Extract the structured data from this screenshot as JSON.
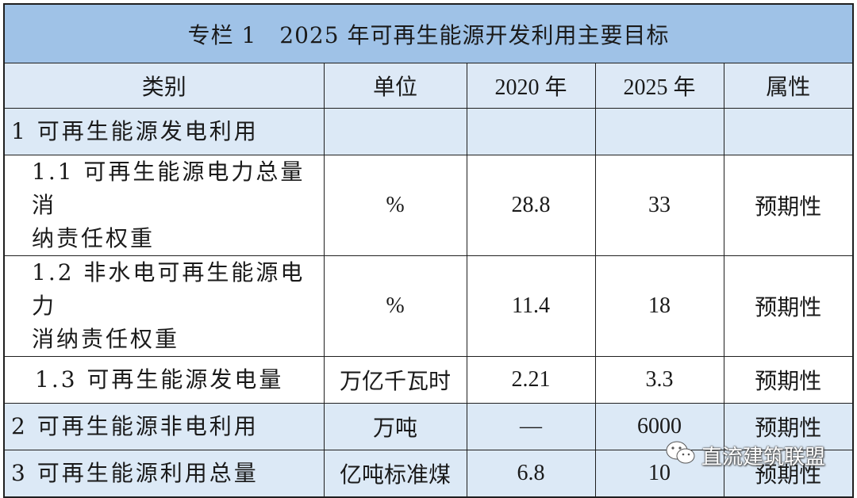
{
  "table": {
    "title": "专栏 1　2025 年可再生能源开发利用主要目标",
    "headers": [
      "类别",
      "单位",
      "2020 年",
      "2025 年",
      "属性"
    ],
    "rows": [
      {
        "category": "1 可再生能源发电利用",
        "unit": "",
        "y2020": "",
        "y2025": "",
        "attr": ""
      },
      {
        "category_line1": "1.1 可再生能源电力总量消",
        "category_line2": "纳责任权重",
        "unit": "%",
        "y2020": "28.8",
        "y2025": "33",
        "attr": "预期性"
      },
      {
        "category_line1": "1.2 非水电可再生能源电力",
        "category_line2": "消纳责任权重",
        "unit": "%",
        "y2020": "11.4",
        "y2025": "18",
        "attr": "预期性"
      },
      {
        "category": "1.3 可再生能源发电量",
        "unit": "万亿千瓦时",
        "y2020": "2.21",
        "y2025": "3.3",
        "attr": "预期性"
      },
      {
        "category": "2 可再生能源非电利用",
        "unit": "万吨",
        "y2020": "—",
        "y2025": "6000",
        "attr": "预期性"
      },
      {
        "category": "3 可再生能源利用总量",
        "unit": "亿吨标准煤",
        "y2020": "6.8",
        "y2025": "10",
        "attr": "预期性"
      }
    ]
  },
  "watermark": {
    "text": "直流建筑联盟",
    "icon": "wechat-icon"
  }
}
